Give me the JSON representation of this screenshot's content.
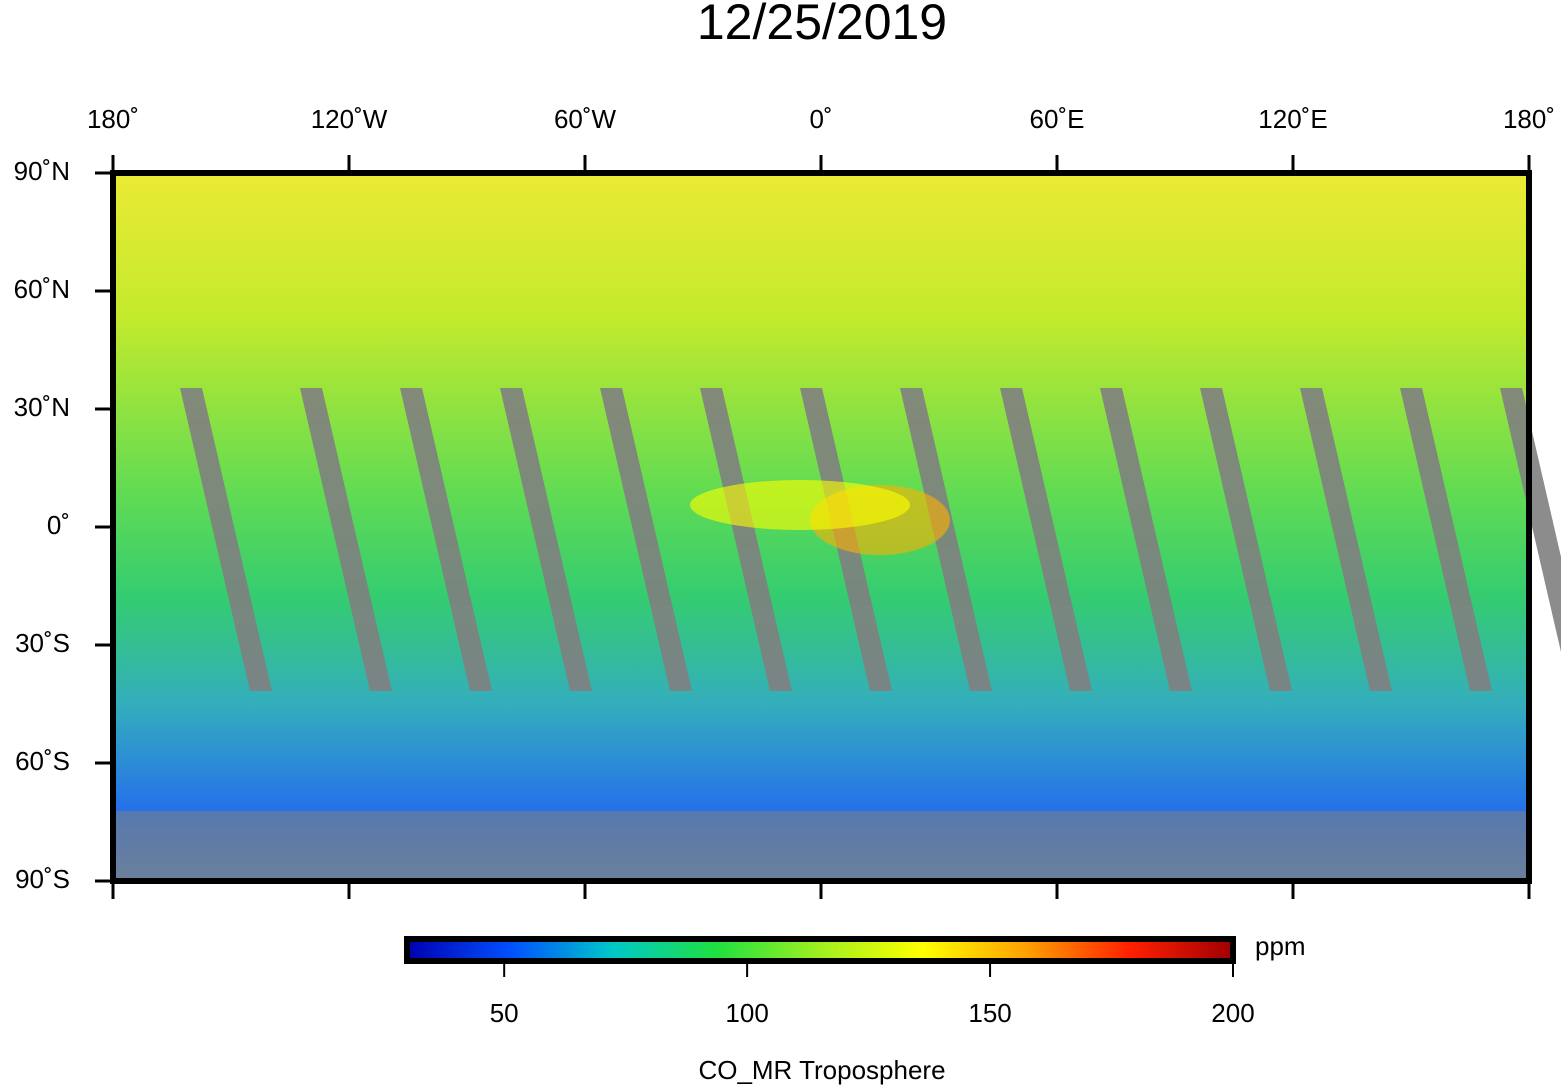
{
  "title": "12/25/2019",
  "map": {
    "xlim": [
      -180,
      180
    ],
    "ylim": [
      -90,
      90
    ],
    "xticks": [
      {
        "value": -180,
        "label": "180˚"
      },
      {
        "value": -120,
        "label": "120˚W"
      },
      {
        "value": -60,
        "label": "60˚W"
      },
      {
        "value": 0,
        "label": "0˚"
      },
      {
        "value": 60,
        "label": "60˚E"
      },
      {
        "value": 120,
        "label": "120˚E"
      },
      {
        "value": 180,
        "label": "180˚"
      }
    ],
    "yticks": [
      {
        "value": 90,
        "label": "90˚N"
      },
      {
        "value": 60,
        "label": "60˚N"
      },
      {
        "value": 30,
        "label": "30˚N"
      },
      {
        "value": 0,
        "label": "0˚"
      },
      {
        "value": -30,
        "label": "30˚S"
      },
      {
        "value": -60,
        "label": "60˚S"
      },
      {
        "value": -90,
        "label": "90˚S"
      }
    ],
    "missing_color": "#808080"
  },
  "colorbar": {
    "label": "CO_MR Troposphere",
    "unit": "ppm",
    "lim": [
      30,
      200
    ],
    "ticks": [
      50,
      100,
      150,
      200
    ],
    "colors": [
      "#0000b0",
      "#0050ff",
      "#00c8c8",
      "#20e040",
      "#a0f020",
      "#ffff00",
      "#ffa000",
      "#ff2000",
      "#a00000"
    ]
  }
}
